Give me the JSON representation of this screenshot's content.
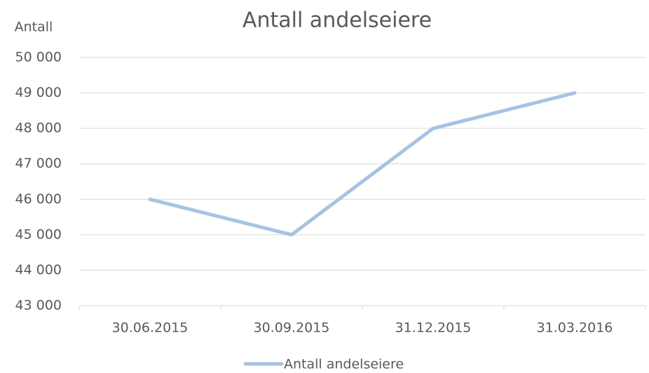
{
  "chart_data": {
    "type": "line",
    "title": "Antall andelseiere",
    "ylabel": "Antall",
    "categories": [
      "30.06.2015",
      "30.09.2015",
      "31.12.2015",
      "31.03.2016"
    ],
    "series": [
      {
        "name": "Antall andelseiere",
        "color": "#a7c3e2",
        "values": [
          46000,
          45000,
          48000,
          49000
        ]
      }
    ],
    "ylim": [
      43000,
      50000
    ],
    "yticks": [
      {
        "value": 43000,
        "label": "43 000"
      },
      {
        "value": 44000,
        "label": "44 000"
      },
      {
        "value": 45000,
        "label": "45 000"
      },
      {
        "value": 46000,
        "label": "46 000"
      },
      {
        "value": 47000,
        "label": "47 000"
      },
      {
        "value": 48000,
        "label": "48 000"
      },
      {
        "value": 49000,
        "label": "49 000"
      },
      {
        "value": 50000,
        "label": "50 000"
      }
    ],
    "grid": true,
    "legend": "bottom"
  }
}
